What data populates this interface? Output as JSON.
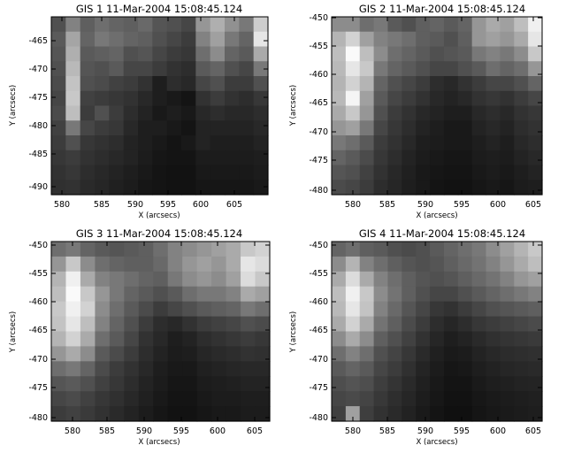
{
  "panels": [
    {
      "title": "GIS 1 11-Mar-2004 15:08:45.124",
      "xlabel": "X (arcsecs)",
      "ylabel": "Y (arcsecs)",
      "x_ticks": [
        "580",
        "585",
        "590",
        "595",
        "600",
        "605"
      ],
      "y_ticks": [
        "-465",
        "-470",
        "-475",
        "-480",
        "-485",
        "-490"
      ]
    },
    {
      "title": "GIS 2 11-Mar-2004 15:08:45.124",
      "xlabel": "X (arcsecs)",
      "ylabel": "Y (arcsecs)",
      "x_ticks": [
        "580",
        "585",
        "590",
        "595",
        "600",
        "605"
      ],
      "y_ticks": [
        "-450",
        "-455",
        "-460",
        "-465",
        "-470",
        "-475",
        "-480"
      ]
    },
    {
      "title": "GIS 3 11-Mar-2004 15:08:45.124",
      "xlabel": "X (arcsecs)",
      "ylabel": "Y (arcsecs)",
      "x_ticks": [
        "580",
        "585",
        "590",
        "595",
        "600",
        "605"
      ],
      "y_ticks": [
        "-450",
        "-455",
        "-460",
        "-465",
        "-470",
        "-475",
        "-480"
      ]
    },
    {
      "title": "GIS 4 11-Mar-2004 15:08:45.124",
      "xlabel": "X (arcsecs)",
      "ylabel": "Y (arcsecs)",
      "x_ticks": [
        "580",
        "585",
        "590",
        "595",
        "600",
        "605"
      ],
      "y_ticks": [
        "-450",
        "-455",
        "-460",
        "-465",
        "-470",
        "-475",
        "-480"
      ]
    }
  ],
  "chart_data": [
    {
      "type": "heatmap",
      "title": "GIS 1 11-Mar-2004 15:08:45.124",
      "xlabel": "X (arcsecs)",
      "ylabel": "Y (arcsecs)",
      "colormap": "grayscale",
      "xlim": [
        577,
        609
      ],
      "ylim": [
        -491.5,
        -461
      ],
      "intensity_grid": [
        [
          80,
          130,
          95,
          110,
          100,
          95,
          105,
          85,
          80,
          70,
          150,
          175,
          145,
          120,
          205
        ],
        [
          90,
          165,
          100,
          120,
          110,
          100,
          95,
          80,
          70,
          60,
          130,
          160,
          120,
          100,
          230
        ],
        [
          85,
          175,
          90,
          95,
          100,
          80,
          85,
          70,
          60,
          55,
          110,
          140,
          100,
          90,
          170
        ],
        [
          80,
          185,
          85,
          80,
          90,
          70,
          70,
          60,
          50,
          45,
          90,
          100,
          80,
          70,
          120
        ],
        [
          75,
          195,
          80,
          75,
          65,
          60,
          50,
          30,
          45,
          40,
          70,
          80,
          60,
          60,
          80
        ],
        [
          70,
          200,
          65,
          60,
          55,
          50,
          40,
          30,
          25,
          20,
          50,
          60,
          50,
          45,
          55
        ],
        [
          75,
          190,
          60,
          80,
          60,
          45,
          35,
          25,
          30,
          25,
          40,
          45,
          40,
          40,
          45
        ],
        [
          65,
          120,
          70,
          60,
          55,
          40,
          30,
          30,
          25,
          20,
          35,
          35,
          35,
          35,
          40
        ],
        [
          60,
          80,
          55,
          50,
          45,
          35,
          30,
          25,
          20,
          25,
          35,
          30,
          30,
          30,
          35
        ],
        [
          55,
          60,
          50,
          45,
          40,
          35,
          28,
          22,
          20,
          20,
          28,
          28,
          28,
          28,
          30
        ],
        [
          50,
          55,
          45,
          40,
          35,
          30,
          25,
          20,
          18,
          18,
          25,
          25,
          25,
          25,
          28
        ],
        [
          48,
          50,
          42,
          38,
          32,
          28,
          22,
          20,
          18,
          18,
          22,
          22,
          22,
          22,
          25
        ]
      ]
    },
    {
      "type": "heatmap",
      "title": "GIS 2 11-Mar-2004 15:08:45.124",
      "xlabel": "X (arcsecs)",
      "ylabel": "Y (arcsecs)",
      "colormap": "grayscale",
      "xlim": [
        577,
        607
      ],
      "ylim": [
        -480.5,
        -449.5
      ],
      "intensity_grid": [
        [
          140,
          140,
          110,
          120,
          90,
          80,
          95,
          100,
          90,
          100,
          150,
          170,
          160,
          190,
          240
        ],
        [
          180,
          210,
          160,
          130,
          120,
          110,
          95,
          90,
          80,
          95,
          150,
          160,
          150,
          170,
          230
        ],
        [
          190,
          250,
          190,
          140,
          110,
          100,
          90,
          80,
          85,
          90,
          120,
          130,
          120,
          140,
          200
        ],
        [
          185,
          230,
          200,
          120,
          100,
          90,
          80,
          70,
          70,
          80,
          90,
          110,
          100,
          110,
          150
        ],
        [
          180,
          210,
          180,
          100,
          80,
          70,
          60,
          45,
          40,
          50,
          60,
          70,
          70,
          80,
          100
        ],
        [
          185,
          245,
          160,
          90,
          70,
          60,
          50,
          40,
          35,
          40,
          50,
          55,
          50,
          60,
          70
        ],
        [
          170,
          200,
          150,
          80,
          60,
          50,
          40,
          35,
          30,
          30,
          40,
          45,
          40,
          50,
          55
        ],
        [
          150,
          160,
          120,
          70,
          55,
          45,
          35,
          30,
          25,
          25,
          35,
          40,
          35,
          45,
          50
        ],
        [
          120,
          110,
          90,
          60,
          50,
          40,
          30,
          28,
          25,
          25,
          30,
          35,
          30,
          40,
          45
        ],
        [
          100,
          90,
          75,
          55,
          45,
          35,
          28,
          25,
          22,
          22,
          28,
          30,
          28,
          35,
          40
        ],
        [
          85,
          80,
          65,
          50,
          40,
          32,
          25,
          22,
          20,
          20,
          25,
          28,
          25,
          30,
          35
        ],
        [
          75,
          70,
          60,
          45,
          38,
          30,
          25,
          20,
          18,
          18,
          22,
          25,
          22,
          28,
          30
        ]
      ]
    },
    {
      "type": "heatmap",
      "title": "GIS 3 11-Mar-2004 15:08:45.124",
      "xlabel": "X (arcsecs)",
      "ylabel": "Y (arcsecs)",
      "colormap": "grayscale",
      "xlim": [
        577,
        607
      ],
      "ylim": [
        -480.5,
        -449.5
      ],
      "intensity_grid": [
        [
          110,
          120,
          100,
          90,
          85,
          90,
          95,
          110,
          130,
          140,
          150,
          160,
          170,
          200,
          210
        ],
        [
          150,
          200,
          140,
          110,
          100,
          95,
          95,
          105,
          130,
          150,
          160,
          150,
          170,
          230,
          220
        ],
        [
          180,
          240,
          170,
          130,
          120,
          110,
          100,
          95,
          120,
          140,
          150,
          140,
          160,
          220,
          200
        ],
        [
          190,
          250,
          200,
          150,
          120,
          100,
          90,
          80,
          90,
          110,
          120,
          120,
          130,
          170,
          160
        ],
        [
          200,
          240,
          210,
          140,
          110,
          90,
          75,
          60,
          70,
          80,
          90,
          95,
          100,
          120,
          110
        ],
        [
          195,
          230,
          190,
          130,
          100,
          80,
          60,
          45,
          40,
          50,
          60,
          65,
          70,
          80,
          75
        ],
        [
          180,
          210,
          170,
          110,
          90,
          70,
          50,
          40,
          30,
          35,
          45,
          50,
          55,
          60,
          55
        ],
        [
          150,
          170,
          140,
          90,
          75,
          60,
          45,
          35,
          28,
          30,
          38,
          42,
          45,
          50,
          48
        ],
        [
          110,
          120,
          100,
          75,
          60,
          50,
          40,
          30,
          25,
          25,
          32,
          35,
          38,
          40,
          40
        ],
        [
          85,
          90,
          80,
          65,
          55,
          45,
          35,
          28,
          22,
          22,
          28,
          30,
          32,
          35,
          35
        ],
        [
          70,
          75,
          65,
          55,
          48,
          40,
          32,
          25,
          20,
          20,
          25,
          28,
          28,
          30,
          30
        ],
        [
          60,
          65,
          58,
          50,
          42,
          35,
          28,
          22,
          18,
          18,
          22,
          25,
          25,
          28,
          28
        ]
      ]
    },
    {
      "type": "heatmap",
      "title": "GIS 4 11-Mar-2004 15:08:45.124",
      "xlabel": "X (arcsecs)",
      "ylabel": "Y (arcsecs)",
      "colormap": "grayscale",
      "xlim": [
        577,
        607
      ],
      "ylim": [
        -480.5,
        -449.5
      ],
      "intensity_grid": [
        [
          100,
          110,
          95,
          90,
          80,
          75,
          80,
          90,
          100,
          110,
          120,
          140,
          160,
          180,
          200
        ],
        [
          140,
          180,
          130,
          110,
          95,
          85,
          80,
          85,
          95,
          105,
          115,
          130,
          150,
          170,
          190
        ],
        [
          170,
          220,
          170,
          130,
          110,
          95,
          85,
          80,
          85,
          95,
          105,
          115,
          130,
          150,
          160
        ],
        [
          190,
          240,
          200,
          140,
          115,
          95,
          80,
          70,
          70,
          80,
          90,
          100,
          110,
          120,
          130
        ],
        [
          185,
          230,
          195,
          130,
          105,
          85,
          70,
          55,
          50,
          60,
          70,
          80,
          85,
          90,
          95
        ],
        [
          170,
          210,
          170,
          115,
          95,
          75,
          60,
          45,
          38,
          45,
          55,
          60,
          65,
          70,
          75
        ],
        [
          140,
          170,
          140,
          95,
          80,
          65,
          50,
          38,
          30,
          35,
          42,
          48,
          52,
          55,
          58
        ],
        [
          110,
          130,
          110,
          80,
          68,
          55,
          42,
          32,
          26,
          28,
          35,
          40,
          44,
          46,
          48
        ],
        [
          90,
          100,
          90,
          70,
          60,
          48,
          36,
          28,
          22,
          24,
          30,
          34,
          38,
          40,
          42
        ],
        [
          78,
          84,
          78,
          62,
          52,
          42,
          32,
          25,
          20,
          20,
          26,
          30,
          32,
          35,
          36
        ],
        [
          70,
          74,
          68,
          56,
          46,
          38,
          29,
          23,
          18,
          18,
          23,
          26,
          28,
          30,
          32
        ],
        [
          64,
          160,
          62,
          50,
          42,
          34,
          26,
          20,
          16,
          16,
          21,
          24,
          26,
          28,
          30
        ]
      ]
    }
  ]
}
